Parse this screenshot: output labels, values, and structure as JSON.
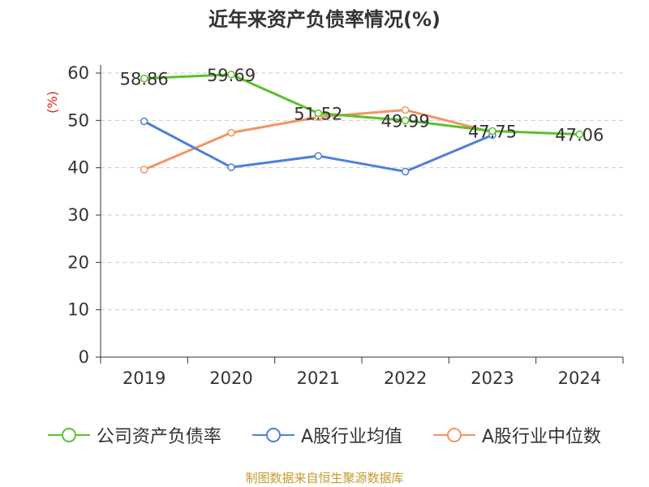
{
  "chart_data": {
    "type": "line",
    "title": "近年来资产负债率情况(%)",
    "ylabel": "(%)",
    "xlabel": "",
    "categories": [
      "2019",
      "2020",
      "2021",
      "2022",
      "2023",
      "2024"
    ],
    "ylim": [
      0,
      60
    ],
    "yticks": [
      0,
      10,
      20,
      30,
      40,
      50,
      60
    ],
    "grid": true,
    "legend_position": "bottom",
    "series": [
      {
        "name": "公司资产负债率",
        "color": "#5cc02c",
        "values": [
          58.86,
          59.69,
          51.52,
          49.99,
          47.75,
          47.06
        ],
        "labels": [
          "58.86",
          "59.69",
          "51.52",
          "49.99",
          "47.75",
          "47.06"
        ]
      },
      {
        "name": "A股行业均值",
        "color": "#4f7fd8",
        "values": [
          49.8,
          40.1,
          42.5,
          39.2,
          46.9,
          null
        ]
      },
      {
        "name": "A股行业中位数",
        "color": "#f39462",
        "values": [
          39.6,
          47.4,
          50.7,
          52.2,
          47.5,
          null
        ]
      }
    ]
  },
  "source": "制图数据来自恒生聚源数据库"
}
